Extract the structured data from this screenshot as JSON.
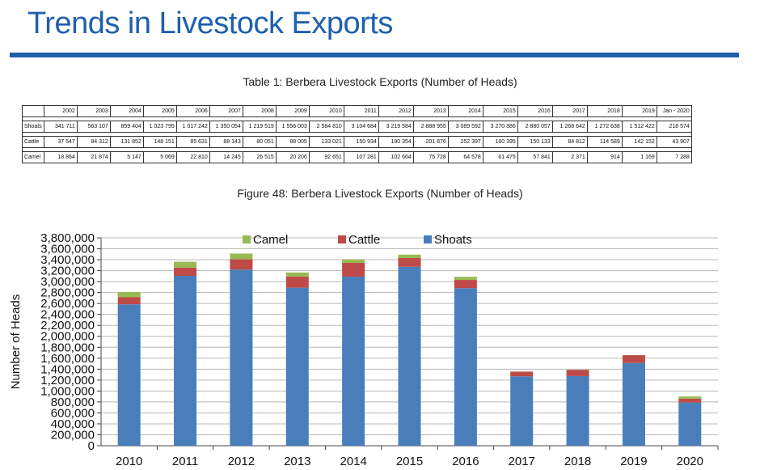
{
  "page_title": "Trends in Livestock Exports",
  "table": {
    "caption": "Table 1: Berbera Livestock Exports (Number of Heads)",
    "columns": [
      "2002",
      "2003",
      "2004",
      "2005",
      "2006",
      "2007",
      "2008",
      "2009",
      "2010",
      "2011",
      "2012",
      "2013",
      "2014",
      "2015",
      "2016",
      "2017",
      "2018",
      "2019",
      "Jan - 2020"
    ],
    "rows": [
      {
        "label": "Shoats",
        "values": [
          "341 711",
          "563 107",
          "859 404",
          "1 023 795",
          "1 017 242",
          "1 350 054",
          "1 219 519",
          "1 556 003",
          "2 584 810",
          "3 104 684",
          "3 219 584",
          "2 888 955",
          "3 089 592",
          "3 270 386",
          "2 880 057",
          "1 268 642",
          "1 272 638",
          "1 512 422",
          "218 574"
        ]
      },
      {
        "label": "Cattle",
        "values": [
          "37 547",
          "84 312",
          "131 852",
          "148 151",
          "85 631",
          "88 143",
          "80 051",
          "88 005",
          "133 021",
          "150 934",
          "190 354",
          "201 876",
          "252 397",
          "160 395",
          "150 133",
          "84 812",
          "114 589",
          "142 152",
          "43 907"
        ]
      },
      {
        "label": "Camel",
        "values": [
          "18 864",
          "21 874",
          "5 147",
          "5 069",
          "22 810",
          "14 245",
          "26 515",
          "20 206",
          "92 651",
          "107 281",
          "102 664",
          "75 728",
          "64 578",
          "61 475",
          "57 841",
          "2 371",
          "914",
          "1 169",
          "7 288"
        ]
      }
    ]
  },
  "figure_caption": "Figure 48: Berbera Livestock Exports (Number of Heads)",
  "chart_data": {
    "type": "bar",
    "stacked": true,
    "title": "",
    "xlabel": "",
    "ylabel": "Number of Heads",
    "categories": [
      "2010",
      "2011",
      "2012",
      "2013",
      "2014",
      "2015",
      "2016",
      "2017",
      "2018",
      "2019",
      "2020"
    ],
    "series": [
      {
        "name": "Shoats",
        "color": "#4a7ebb",
        "values": [
          2584810,
          3104684,
          3219584,
          2888955,
          3089592,
          3270386,
          2880057,
          1268642,
          1272638,
          1512422,
          790000
        ]
      },
      {
        "name": "Cattle",
        "color": "#be4b48",
        "values": [
          133021,
          150934,
          190354,
          201876,
          252397,
          160395,
          150133,
          84812,
          114589,
          142152,
          70000
        ]
      },
      {
        "name": "Camel",
        "color": "#98b954",
        "values": [
          92651,
          107281,
          102664,
          75728,
          64578,
          61475,
          57841,
          2371,
          914,
          1169,
          40000
        ]
      }
    ],
    "legend_order": [
      "Camel",
      "Cattle",
      "Shoats"
    ],
    "legend_position": "top",
    "ylim": [
      0,
      3800000
    ],
    "y_ticks": [
      "0",
      "200,000",
      "400,000",
      "600,000",
      "800,000",
      "1,000,000",
      "1,200,000",
      "1,400,000",
      "1,600,000",
      "1,800,000",
      "2,000,000",
      "2,200,000",
      "2,400,000",
      "2,600,000",
      "2,800,000",
      "3,000,000",
      "3,200,000",
      "3,400,000",
      "3,600,000",
      "3,800,000"
    ],
    "grid": true
  }
}
